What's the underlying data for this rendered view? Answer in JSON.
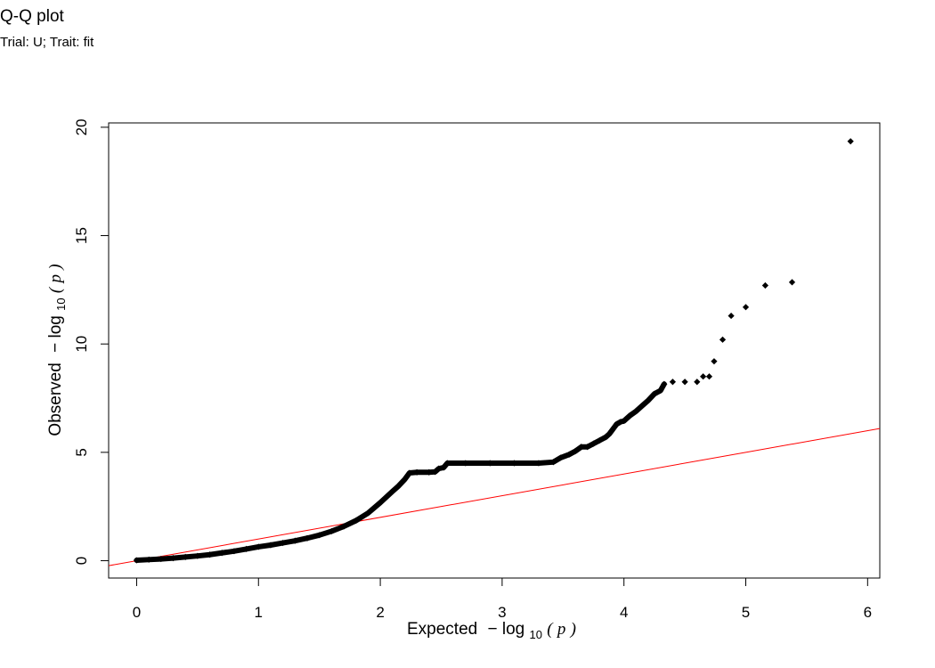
{
  "title": "Q-Q plot",
  "subtitle": "Trial: U; Trait: fit",
  "chart_data": {
    "type": "scatter",
    "title": "Q-Q plot",
    "subtitle": "Trial: U; Trait: fit",
    "xlabel": {
      "prefix": "Expected",
      "minus": "−",
      "log": "log",
      "sub": "10",
      "open": "(",
      "p": "p",
      "close": ")"
    },
    "ylabel": {
      "prefix": "Observed",
      "minus": "−",
      "log": "log",
      "sub": "10",
      "open": "(",
      "p": "p",
      "close": ")"
    },
    "xlim": [
      -0.23,
      6.1
    ],
    "ylim": [
      -0.8,
      20.2
    ],
    "xticks": [
      0,
      1,
      2,
      3,
      4,
      5,
      6
    ],
    "yticks": [
      0,
      5,
      10,
      15,
      20
    ],
    "reference_line": {
      "slope": 1,
      "intercept": 0,
      "color": "#ff0000"
    },
    "point_color": "#000000",
    "points": [
      [
        0.0,
        0.02
      ],
      [
        0.1,
        0.05
      ],
      [
        0.2,
        0.08
      ],
      [
        0.3,
        0.12
      ],
      [
        0.4,
        0.17
      ],
      [
        0.5,
        0.22
      ],
      [
        0.6,
        0.28
      ],
      [
        0.7,
        0.36
      ],
      [
        0.8,
        0.44
      ],
      [
        0.9,
        0.54
      ],
      [
        1.0,
        0.64
      ],
      [
        1.1,
        0.72
      ],
      [
        1.2,
        0.82
      ],
      [
        1.3,
        0.92
      ],
      [
        1.4,
        1.04
      ],
      [
        1.5,
        1.18
      ],
      [
        1.6,
        1.36
      ],
      [
        1.7,
        1.58
      ],
      [
        1.8,
        1.85
      ],
      [
        1.9,
        2.2
      ],
      [
        2.0,
        2.68
      ],
      [
        2.1,
        3.2
      ],
      [
        2.15,
        3.45
      ],
      [
        2.2,
        3.75
      ],
      [
        2.24,
        4.05
      ],
      [
        2.3,
        4.08
      ],
      [
        2.4,
        4.08
      ],
      [
        2.45,
        4.1
      ],
      [
        2.48,
        4.25
      ],
      [
        2.52,
        4.3
      ],
      [
        2.55,
        4.5
      ],
      [
        2.7,
        4.5
      ],
      [
        2.9,
        4.5
      ],
      [
        3.1,
        4.5
      ],
      [
        3.3,
        4.5
      ],
      [
        3.42,
        4.55
      ],
      [
        3.48,
        4.75
      ],
      [
        3.55,
        4.9
      ],
      [
        3.6,
        5.05
      ],
      [
        3.65,
        5.25
      ],
      [
        3.7,
        5.25
      ],
      [
        3.75,
        5.4
      ],
      [
        3.8,
        5.55
      ],
      [
        3.85,
        5.7
      ],
      [
        3.88,
        5.85
      ],
      [
        3.9,
        6.0
      ],
      [
        3.92,
        6.15
      ],
      [
        3.94,
        6.3
      ],
      [
        3.97,
        6.4
      ],
      [
        4.0,
        6.45
      ],
      [
        4.05,
        6.7
      ],
      [
        4.1,
        6.9
      ],
      [
        4.15,
        7.15
      ],
      [
        4.2,
        7.4
      ],
      [
        4.25,
        7.7
      ],
      [
        4.3,
        7.85
      ],
      [
        4.33,
        8.15
      ],
      [
        4.4,
        8.25
      ],
      [
        4.5,
        8.25
      ],
      [
        4.6,
        8.25
      ],
      [
        4.65,
        8.5
      ],
      [
        4.7,
        8.5
      ],
      [
        4.74,
        9.2
      ],
      [
        4.81,
        10.2
      ],
      [
        4.88,
        11.3
      ],
      [
        5.0,
        11.7
      ],
      [
        5.16,
        12.7
      ],
      [
        5.38,
        12.85
      ],
      [
        5.86,
        19.35
      ]
    ]
  }
}
